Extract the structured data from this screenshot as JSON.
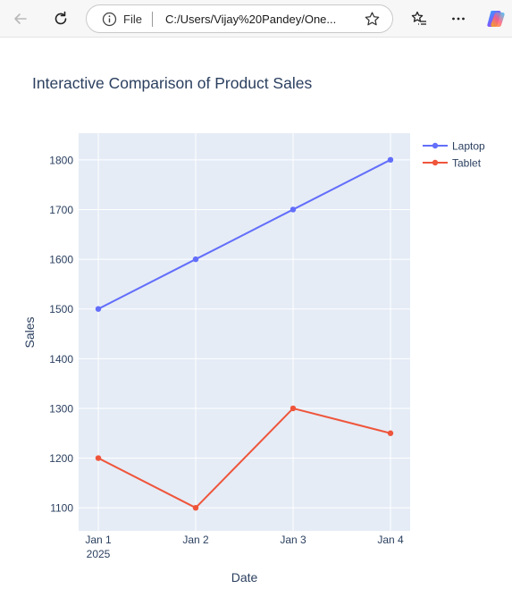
{
  "browser": {
    "file_label": "File",
    "address": "C:/Users/Vijay%20Pandey/One...",
    "icons": {
      "back": "back-arrow-icon",
      "refresh": "refresh-icon",
      "info": "info-icon",
      "favorite": "star-icon",
      "favorites_list": "favorites-list-icon",
      "menu": "more-icon",
      "copilot": "copilot-icon"
    }
  },
  "chart_data": {
    "type": "line",
    "title": "Interactive Comparison of Product Sales",
    "xlabel": "Date",
    "ylabel": "Sales",
    "categories": [
      "Jan 1",
      "Jan 2",
      "Jan 3",
      "Jan 4"
    ],
    "x_year_label": "2025",
    "x": [
      "2025-01-01",
      "2025-01-02",
      "2025-01-03",
      "2025-01-04"
    ],
    "y_ticks": [
      1100,
      1200,
      1300,
      1400,
      1500,
      1600,
      1700,
      1800
    ],
    "ylim": [
      1053.6,
      1853.6
    ],
    "grid": true,
    "legend_position": "top-right",
    "series": [
      {
        "name": "Laptop",
        "values": [
          1500,
          1600,
          1700,
          1800
        ],
        "color": "#636efa"
      },
      {
        "name": "Tablet",
        "values": [
          1200,
          1100,
          1300,
          1250
        ],
        "color": "#ef553b"
      }
    ]
  }
}
